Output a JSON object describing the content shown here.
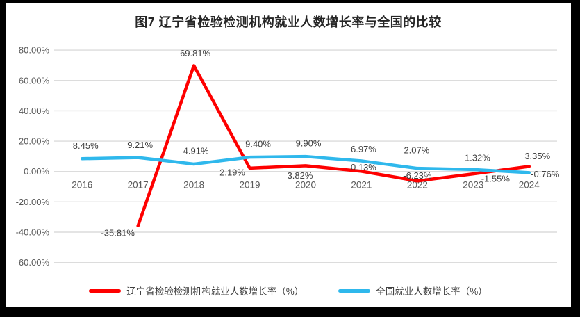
{
  "chart_data": {
    "type": "line",
    "title": "图7  辽宁省检验检测机构就业人数增长率与全国的比较",
    "categories": [
      "2016",
      "2017",
      "2018",
      "2019",
      "2020",
      "2021",
      "2022",
      "2023",
      "2024"
    ],
    "series": [
      {
        "name": "辽宁省检验检测机构就业人数增长率（%）",
        "color": "#FE0000",
        "values": [
          null,
          -35.81,
          69.81,
          2.19,
          3.82,
          0.13,
          -6.23,
          -1.55,
          3.35
        ],
        "labels": [
          null,
          "-35.81%",
          "69.81%",
          "2.19%",
          "3.82%",
          "0.13%",
          "-6.23%",
          "-1.55%",
          "3.35%"
        ],
        "label_offsets": [
          null,
          [
            -29,
            10
          ],
          [
            2,
            -18
          ],
          [
            -25,
            6
          ],
          [
            -8,
            14
          ],
          [
            3,
            -6
          ],
          [
            0,
            -8
          ],
          [
            32,
            7
          ],
          [
            12,
            -15
          ]
        ]
      },
      {
        "name": "全国就业人数增长率（%）",
        "color": "#2FB8EC",
        "values": [
          8.45,
          9.21,
          4.91,
          9.4,
          9.9,
          6.97,
          2.07,
          1.32,
          -0.76
        ],
        "labels": [
          "8.45%",
          "9.21%",
          "4.91%",
          "9.40%",
          "9.90%",
          "6.97%",
          "2.07%",
          "1.32%",
          "-0.76%"
        ],
        "label_offsets": [
          [
            5,
            -19
          ],
          [
            3,
            -18
          ],
          [
            3,
            -19
          ],
          [
            12,
            -19
          ],
          [
            4,
            -19
          ],
          [
            3,
            -17
          ],
          [
            -1,
            -26
          ],
          [
            6,
            -17
          ],
          [
            23,
            2
          ]
        ]
      }
    ],
    "yticks": {
      "values": [
        80,
        60,
        40,
        20,
        0,
        -20,
        -40,
        -60
      ],
      "labels": [
        "80.00%",
        "60.00%",
        "40.00%",
        "20.00%",
        "0.00%",
        "-20.00%",
        "-40.00%",
        "-60.00%"
      ]
    },
    "axis_range_pct": [
      -60,
      80
    ],
    "grid": "horizontal",
    "legend_position": "bottom",
    "colors": {
      "grid": "#DCDCDC",
      "tick_text": "#595959",
      "data_label_text": "#404040",
      "title_text": "#262626",
      "frame_border": "#000000"
    }
  }
}
